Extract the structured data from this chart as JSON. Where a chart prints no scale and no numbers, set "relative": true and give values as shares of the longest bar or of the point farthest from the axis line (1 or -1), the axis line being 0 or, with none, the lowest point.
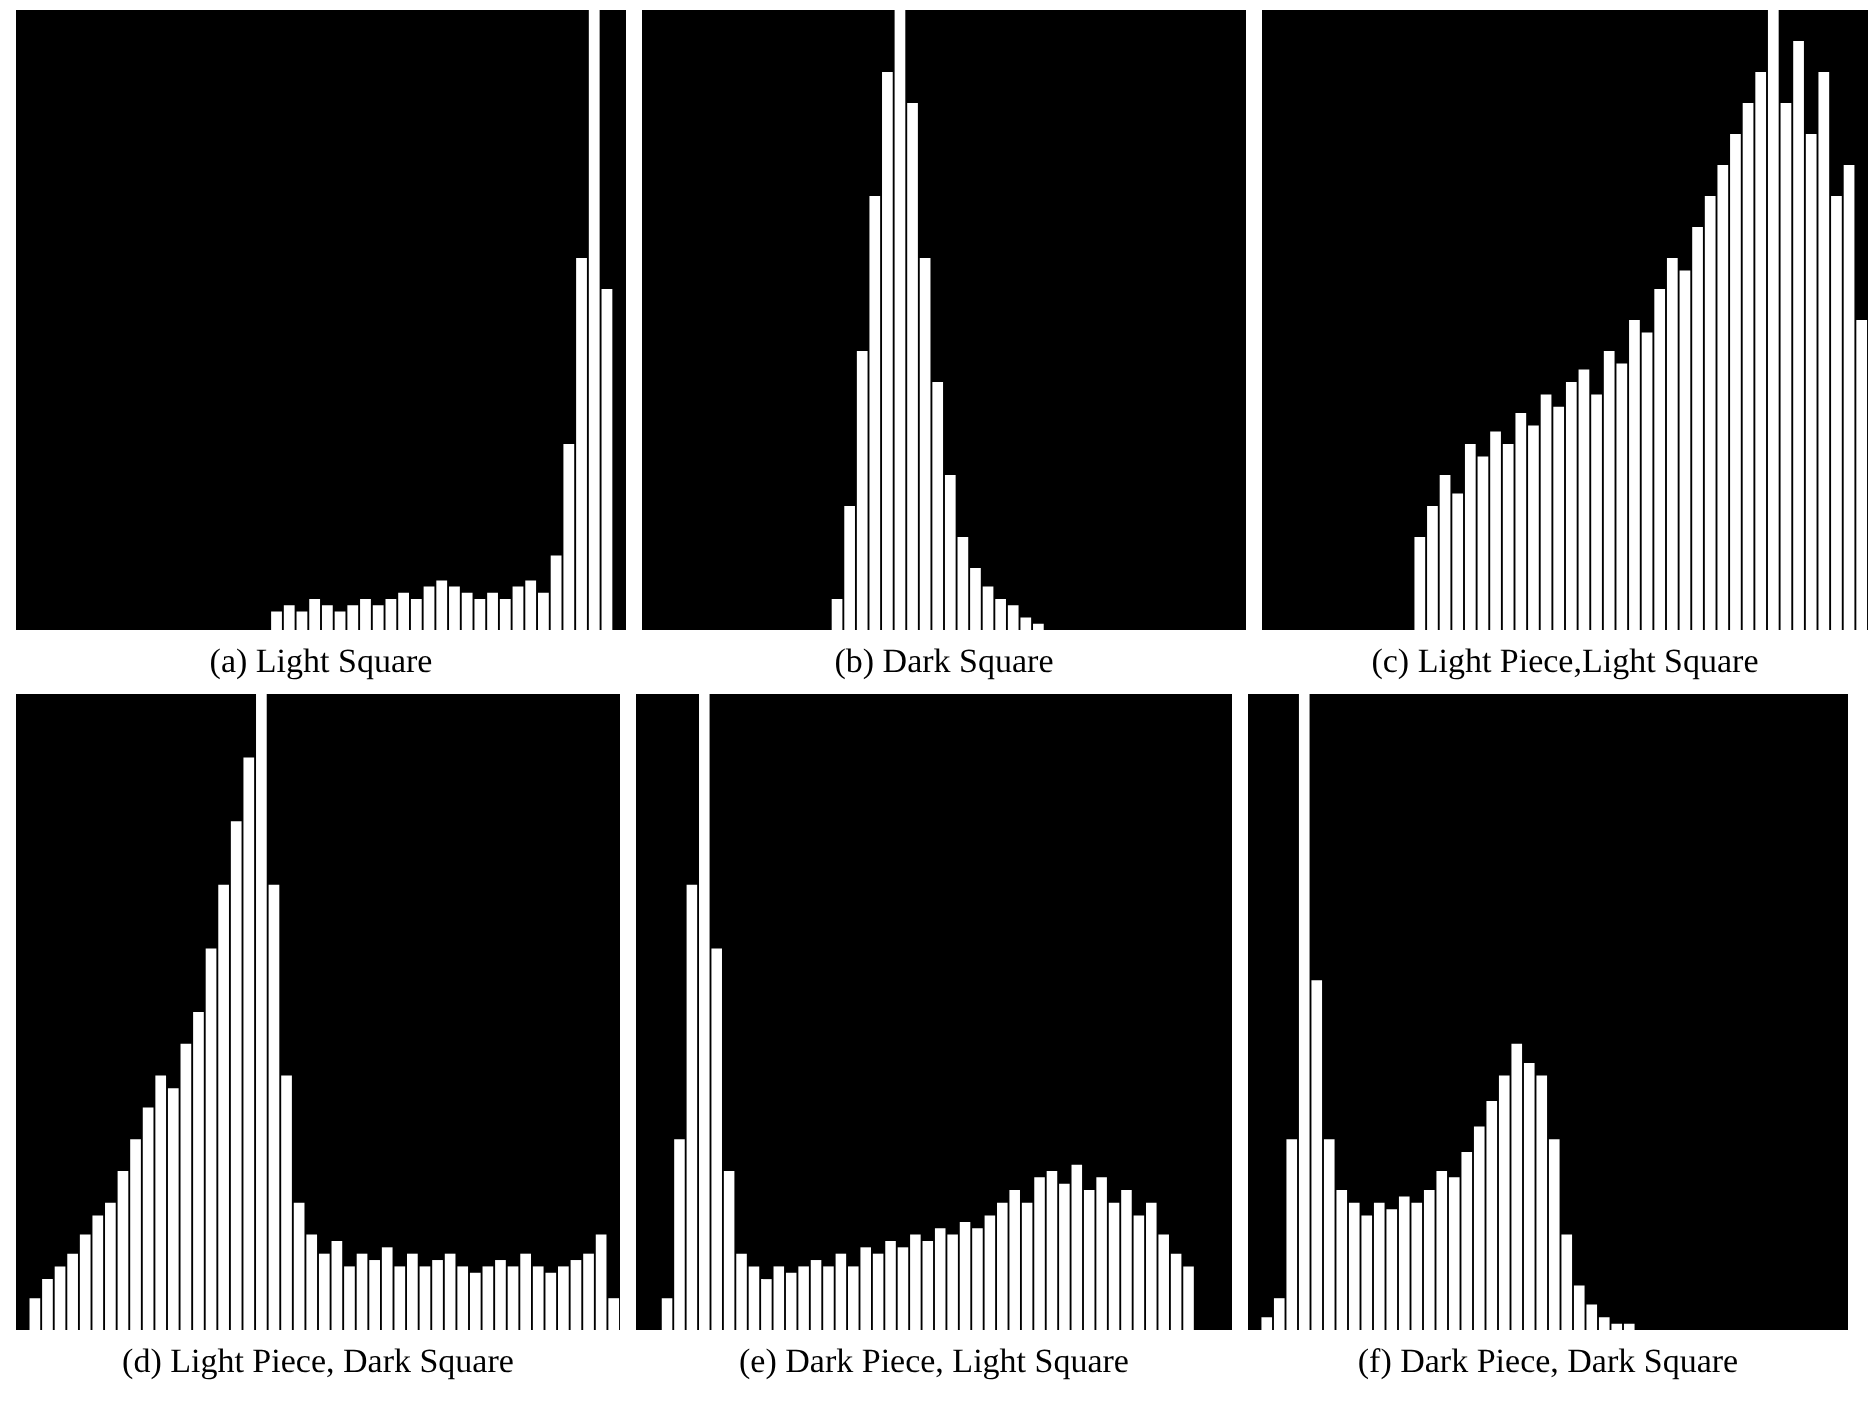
{
  "chart_data": [
    {
      "type": "bar",
      "title": "(a) Light Square",
      "relative": true,
      "color": "#ffffff",
      "categories": [
        null,
        null,
        null,
        null,
        null,
        null,
        null,
        null,
        null,
        null,
        null,
        null,
        null,
        null,
        null,
        null,
        null,
        null,
        null,
        null,
        null,
        null,
        null,
        null,
        null,
        null,
        null
      ],
      "values": [
        0.03,
        0.04,
        0.03,
        0.05,
        0.04,
        0.03,
        0.04,
        0.05,
        0.04,
        0.05,
        0.06,
        0.05,
        0.07,
        0.08,
        0.07,
        0.06,
        0.05,
        0.06,
        0.05,
        0.07,
        0.08,
        0.06,
        0.12,
        0.3,
        0.6,
        1,
        0.55
      ]
    },
    {
      "type": "bar",
      "title": "(b) Dark Square",
      "relative": true,
      "color": "#ffffff",
      "categories": [
        null,
        null,
        null,
        null,
        null,
        null,
        null,
        null,
        null,
        null,
        null,
        null,
        null,
        null,
        null,
        null,
        null
      ],
      "values": [
        0.05,
        0.2,
        0.45,
        0.7,
        0.9,
        1,
        0.85,
        0.6,
        0.4,
        0.25,
        0.15,
        0.1,
        0.07,
        0.05,
        0.04,
        0.02,
        0.01
      ]
    },
    {
      "type": "bar",
      "title": "(c) Light Piece,Light Square",
      "relative": true,
      "color": "#ffffff",
      "categories": [
        null,
        null,
        null,
        null,
        null,
        null,
        null,
        null,
        null,
        null,
        null,
        null,
        null,
        null,
        null,
        null,
        null,
        null,
        null,
        null,
        null,
        null,
        null,
        null,
        null,
        null,
        null,
        null,
        null,
        null,
        null,
        null,
        null,
        null,
        null,
        null
      ],
      "values": [
        0.15,
        0.2,
        0.25,
        0.22,
        0.3,
        0.28,
        0.32,
        0.3,
        0.35,
        0.33,
        0.38,
        0.36,
        0.4,
        0.42,
        0.38,
        0.45,
        0.43,
        0.5,
        0.48,
        0.55,
        0.6,
        0.58,
        0.65,
        0.7,
        0.75,
        0.8,
        0.85,
        0.9,
        1,
        0.85,
        0.95,
        0.8,
        0.9,
        0.7,
        0.75,
        0.5
      ]
    },
    {
      "type": "bar",
      "title": "(d) Light Piece, Dark Square",
      "relative": true,
      "color": "#ffffff",
      "categories": [
        null,
        null,
        null,
        null,
        null,
        null,
        null,
        null,
        null,
        null,
        null,
        null,
        null,
        null,
        null,
        null,
        null,
        null,
        null,
        null,
        null,
        null,
        null,
        null,
        null,
        null,
        null,
        null,
        null,
        null,
        null,
        null,
        null,
        null,
        null,
        null,
        null,
        null,
        null,
        null,
        null,
        null,
        null,
        null,
        null,
        null,
        null
      ],
      "values": [
        0.05,
        0.08,
        0.1,
        0.12,
        0.15,
        0.18,
        0.2,
        0.25,
        0.3,
        0.35,
        0.4,
        0.38,
        0.45,
        0.5,
        0.6,
        0.7,
        0.8,
        0.9,
        1,
        0.7,
        0.4,
        0.2,
        0.15,
        0.12,
        0.14,
        0.1,
        0.12,
        0.11,
        0.13,
        0.1,
        0.12,
        0.1,
        0.11,
        0.12,
        0.1,
        0.09,
        0.1,
        0.11,
        0.1,
        0.12,
        0.1,
        0.09,
        0.1,
        0.11,
        0.12,
        0.15,
        0.05
      ]
    },
    {
      "type": "bar",
      "title": "(e) Dark Piece, Light Square",
      "relative": true,
      "color": "#ffffff",
      "categories": [
        null,
        null,
        null,
        null,
        null,
        null,
        null,
        null,
        null,
        null,
        null,
        null,
        null,
        null,
        null,
        null,
        null,
        null,
        null,
        null,
        null,
        null,
        null,
        null,
        null,
        null,
        null,
        null,
        null,
        null,
        null,
        null,
        null,
        null,
        null,
        null,
        null,
        null,
        null,
        null,
        null,
        null,
        null
      ],
      "values": [
        0.05,
        0.3,
        0.7,
        1,
        0.6,
        0.25,
        0.12,
        0.1,
        0.08,
        0.1,
        0.09,
        0.1,
        0.11,
        0.1,
        0.12,
        0.1,
        0.13,
        0.12,
        0.14,
        0.13,
        0.15,
        0.14,
        0.16,
        0.15,
        0.17,
        0.16,
        0.18,
        0.2,
        0.22,
        0.2,
        0.24,
        0.25,
        0.23,
        0.26,
        0.22,
        0.24,
        0.2,
        0.22,
        0.18,
        0.2,
        0.15,
        0.12,
        0.1
      ]
    },
    {
      "type": "bar",
      "title": "(f) Dark Piece, Dark Square",
      "relative": true,
      "color": "#ffffff",
      "categories": [
        null,
        null,
        null,
        null,
        null,
        null,
        null,
        null,
        null,
        null,
        null,
        null,
        null,
        null,
        null,
        null,
        null,
        null,
        null,
        null,
        null,
        null,
        null,
        null,
        null,
        null,
        null,
        null,
        null,
        null
      ],
      "values": [
        0.02,
        0.05,
        0.3,
        1,
        0.55,
        0.3,
        0.22,
        0.2,
        0.18,
        0.2,
        0.19,
        0.21,
        0.2,
        0.22,
        0.25,
        0.24,
        0.28,
        0.32,
        0.36,
        0.4,
        0.45,
        0.42,
        0.4,
        0.3,
        0.15,
        0.07,
        0.04,
        0.02,
        0.01,
        0.01
      ]
    }
  ]
}
